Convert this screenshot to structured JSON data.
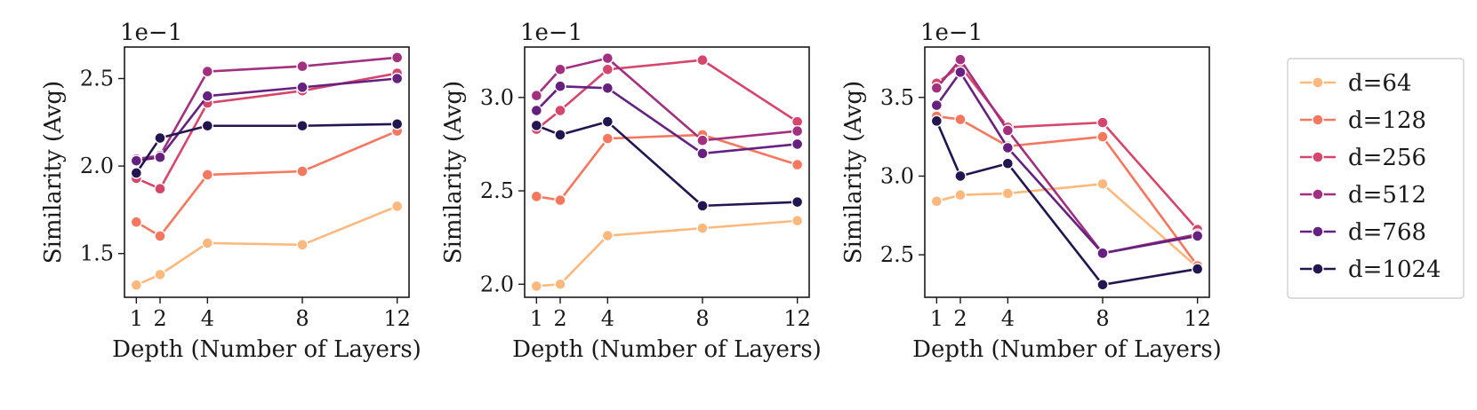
{
  "legend": {
    "placement": "right-outside",
    "entries": [
      "d=64",
      "d=128",
      "d=256",
      "d=512",
      "d=768",
      "d=1024"
    ]
  },
  "chart_data": [
    {
      "type": "line",
      "xlabel": "Depth (Number of Layers)",
      "ylabel": "Similarity (Avg)",
      "scale_label": "1e−1",
      "x": [
        1,
        2,
        4,
        8,
        12
      ],
      "xticks": [
        "1",
        "2",
        "4",
        "8",
        "12"
      ],
      "xlim": [
        0.5,
        12.5
      ],
      "ylim": [
        1.25,
        2.68
      ],
      "yticks": [
        1.5,
        2.0,
        2.5
      ],
      "ytick_labels": [
        "1.5",
        "2.0",
        "2.5"
      ],
      "grid": false,
      "series": [
        {
          "name": "d=64",
          "color": "#fdb97d",
          "values": [
            1.32,
            1.38,
            1.56,
            1.55,
            1.77
          ]
        },
        {
          "name": "d=128",
          "color": "#f4775e",
          "values": [
            1.68,
            1.6,
            1.95,
            1.97,
            2.2
          ]
        },
        {
          "name": "d=256",
          "color": "#d6456c",
          "values": [
            1.93,
            1.87,
            2.36,
            2.43,
            2.53
          ]
        },
        {
          "name": "d=512",
          "color": "#a2307f",
          "values": [
            2.04,
            2.06,
            2.54,
            2.57,
            2.62
          ]
        },
        {
          "name": "d=768",
          "color": "#652080",
          "values": [
            2.03,
            2.05,
            2.4,
            2.45,
            2.5
          ]
        },
        {
          "name": "d=1024",
          "color": "#231550",
          "values": [
            1.96,
            2.16,
            2.23,
            2.23,
            2.24
          ]
        }
      ]
    },
    {
      "type": "line",
      "xlabel": "Depth (Number of Layers)",
      "ylabel": "Similarity (Avg)",
      "scale_label": "1e−1",
      "x": [
        1,
        2,
        4,
        8,
        12
      ],
      "xticks": [
        "1",
        "2",
        "4",
        "8",
        "12"
      ],
      "xlim": [
        0.5,
        12.5
      ],
      "ylim": [
        1.93,
        3.27
      ],
      "yticks": [
        2.0,
        2.5,
        3.0
      ],
      "ytick_labels": [
        "2.0",
        "2.5",
        "3.0"
      ],
      "grid": false,
      "series": [
        {
          "name": "d=64",
          "color": "#fdb97d",
          "values": [
            1.99,
            2.0,
            2.26,
            2.3,
            2.34
          ]
        },
        {
          "name": "d=128",
          "color": "#f4775e",
          "values": [
            2.47,
            2.45,
            2.78,
            2.8,
            2.64
          ]
        },
        {
          "name": "d=256",
          "color": "#d6456c",
          "values": [
            2.83,
            2.93,
            3.15,
            3.2,
            2.87
          ]
        },
        {
          "name": "d=512",
          "color": "#a2307f",
          "values": [
            3.01,
            3.15,
            3.21,
            2.77,
            2.82
          ]
        },
        {
          "name": "d=768",
          "color": "#652080",
          "values": [
            2.93,
            3.06,
            3.05,
            2.7,
            2.75
          ]
        },
        {
          "name": "d=1024",
          "color": "#231550",
          "values": [
            2.85,
            2.8,
            2.87,
            2.42,
            2.44
          ]
        }
      ]
    },
    {
      "type": "line",
      "xlabel": "Depth (Number of Layers)",
      "ylabel": "Similarity (Avg)",
      "scale_label": "1e−1",
      "x": [
        1,
        2,
        4,
        8,
        12
      ],
      "xticks": [
        "1",
        "2",
        "4",
        "8",
        "12"
      ],
      "xlim": [
        0.5,
        12.5
      ],
      "ylim": [
        2.23,
        3.82
      ],
      "yticks": [
        2.5,
        3.0,
        3.5
      ],
      "ytick_labels": [
        "2.5",
        "3.0",
        "3.5"
      ],
      "grid": false,
      "series": [
        {
          "name": "d=64",
          "color": "#fdb97d",
          "values": [
            2.84,
            2.88,
            2.89,
            2.95,
            2.42
          ]
        },
        {
          "name": "d=128",
          "color": "#f4775e",
          "values": [
            3.38,
            3.36,
            3.19,
            3.25,
            2.43
          ]
        },
        {
          "name": "d=256",
          "color": "#d6456c",
          "values": [
            3.59,
            3.7,
            3.31,
            3.34,
            2.66
          ]
        },
        {
          "name": "d=512",
          "color": "#a2307f",
          "values": [
            3.56,
            3.74,
            3.29,
            2.51,
            2.63
          ]
        },
        {
          "name": "d=768",
          "color": "#652080",
          "values": [
            3.45,
            3.66,
            3.18,
            2.51,
            2.62
          ]
        },
        {
          "name": "d=1024",
          "color": "#231550",
          "values": [
            3.35,
            3.0,
            3.08,
            2.31,
            2.41
          ]
        }
      ]
    }
  ]
}
